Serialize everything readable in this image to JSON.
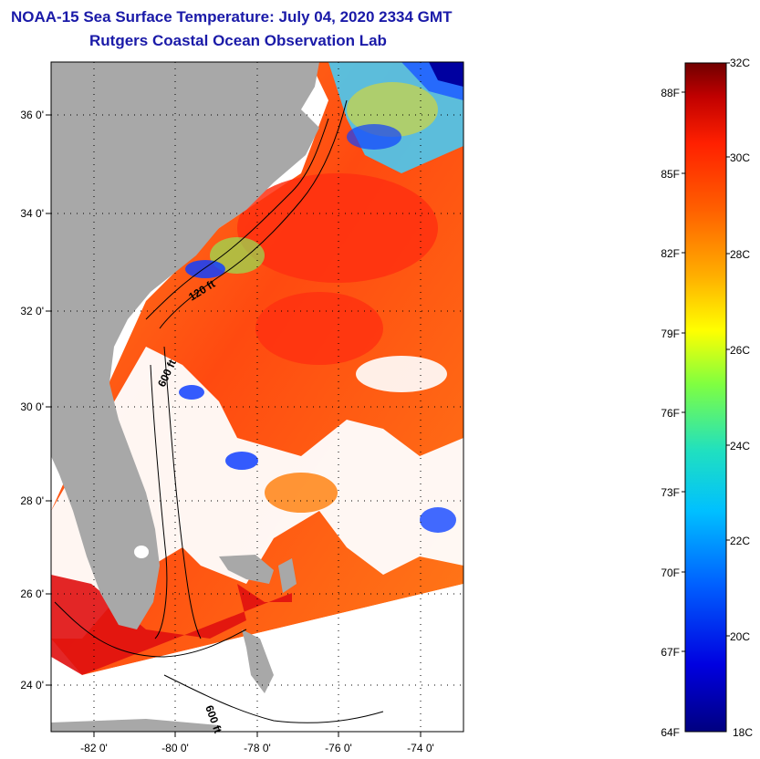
{
  "header": {
    "title": "NOAA-15 Sea Surface Temperature:  July 04, 2020 2334 GMT",
    "subtitle": "Rutgers Coastal Ocean Observation Lab"
  },
  "map": {
    "lat_labels": [
      "36 0'",
      "34 0'",
      "32 0'",
      "30 0'",
      "28 0'",
      "26 0'",
      "24 0'"
    ],
    "lon_labels": [
      "-82 0'",
      "-80 0'",
      "-78 0'",
      "-76 0'",
      "-74 0'"
    ],
    "contour_labels": [
      "120 ft",
      "600 ft",
      "600 ft"
    ],
    "land_color": "#a8a8a8",
    "cloud_color": "#ffffff"
  },
  "colorbar": {
    "top_label": "32C",
    "bottom_label_f": "64F",
    "bottom_label_c": "18C",
    "f_labels": [
      "88F",
      "85F",
      "82F",
      "79F",
      "76F",
      "73F",
      "70F",
      "67F"
    ],
    "c_labels": [
      "30C",
      "28C",
      "26C",
      "24C",
      "22C",
      "20C"
    ],
    "colors": [
      "#000080",
      "#0000e0",
      "#0060ff",
      "#00c0ff",
      "#20e0c0",
      "#80ff40",
      "#ffff00",
      "#ffb000",
      "#ff6000",
      "#ff2000",
      "#c00000",
      "#700000"
    ]
  }
}
